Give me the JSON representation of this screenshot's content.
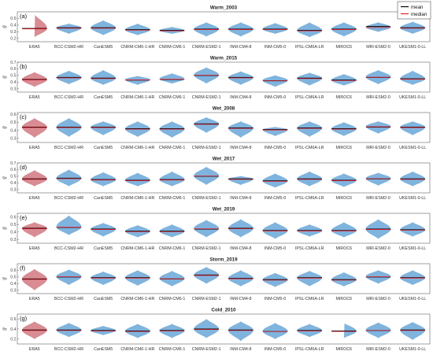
{
  "legend": [
    {
      "label": "mean",
      "color": "#000000"
    },
    {
      "label": "median",
      "color": "#e8212b"
    }
  ],
  "chart_data": [
    {
      "type": "violin",
      "panel_label": "(a)",
      "title": "Warm_2003",
      "ylabel": "g",
      "ylim": [
        0.15,
        0.6
      ],
      "yticks": [
        0.2,
        0.3,
        0.4,
        0.5
      ],
      "categories": [
        "ERA5",
        "BCC-CSM2-HR",
        "CanESM5",
        "CNRM-CM6-1-HR",
        "CNRM-CM6-1",
        "CNRM-ESM2-1",
        "INM-CM4-8",
        "INM-CM5-0",
        "IPSL-CM6A-LR",
        "MIROC6",
        "MRI-ESM2-0",
        "UKESM1-0-LL"
      ],
      "mean": [
        0.35,
        0.36,
        0.36,
        0.33,
        0.32,
        0.34,
        0.34,
        0.34,
        0.32,
        0.34,
        0.38,
        0.36
      ],
      "median": [
        0.35,
        0.36,
        0.36,
        0.33,
        0.32,
        0.34,
        0.34,
        0.34,
        0.32,
        0.34,
        0.37,
        0.36
      ],
      "min": [
        0.22,
        0.27,
        0.25,
        0.25,
        0.27,
        0.23,
        0.23,
        0.27,
        0.22,
        0.23,
        0.3,
        0.27
      ],
      "max": [
        0.56,
        0.42,
        0.47,
        0.42,
        0.37,
        0.44,
        0.44,
        0.43,
        0.44,
        0.44,
        0.44,
        0.45
      ]
    },
    {
      "type": "violin",
      "panel_label": "(b)",
      "title": "Warm_2015",
      "ylabel": "g",
      "ylim": [
        0.25,
        0.7
      ],
      "yticks": [
        0.3,
        0.4,
        0.5,
        0.6,
        0.7
      ],
      "categories": [
        "ERA5",
        "BCC-CSM2-HR",
        "CanESM5",
        "CNRM-CM6-1-HR",
        "CNRM-CM6-1",
        "CNRM-ESM2-1",
        "INM-CM4-8",
        "INM-CM5-0",
        "IPSL-CM6A-LR",
        "MIROC6",
        "MRI-ESM2-0",
        "UKESM1-0-LL"
      ],
      "mean": [
        0.44,
        0.47,
        0.46,
        0.43,
        0.44,
        0.5,
        0.47,
        0.42,
        0.46,
        0.43,
        0.47,
        0.45
      ],
      "median": [
        0.44,
        0.47,
        0.46,
        0.44,
        0.45,
        0.51,
        0.47,
        0.43,
        0.46,
        0.43,
        0.48,
        0.45
      ],
      "min": [
        0.33,
        0.37,
        0.36,
        0.36,
        0.38,
        0.38,
        0.36,
        0.33,
        0.35,
        0.35,
        0.37,
        0.36
      ],
      "max": [
        0.55,
        0.57,
        0.58,
        0.49,
        0.53,
        0.62,
        0.56,
        0.5,
        0.54,
        0.52,
        0.58,
        0.57
      ]
    },
    {
      "type": "violin",
      "panel_label": "(c)",
      "title": "Wet_2008",
      "ylabel": "g",
      "ylim": [
        0.25,
        0.62
      ],
      "yticks": [
        0.3,
        0.4,
        0.5,
        0.6
      ],
      "categories": [
        "ERA5",
        "BCC-CSM2-HR",
        "CanESM5",
        "CNRM-CM6-1-HR",
        "CNRM-CM6-1",
        "CNRM-ESM2-1",
        "INM-CM4-8",
        "INM-CM5-0",
        "IPSL-CM6A-LR",
        "MIROC6",
        "MRI-ESM2-0",
        "UKESM1-0-LL"
      ],
      "mean": [
        0.44,
        0.44,
        0.44,
        0.42,
        0.42,
        0.48,
        0.43,
        0.41,
        0.43,
        0.42,
        0.44,
        0.44
      ],
      "median": [
        0.44,
        0.44,
        0.44,
        0.42,
        0.42,
        0.48,
        0.43,
        0.41,
        0.43,
        0.42,
        0.45,
        0.44
      ],
      "min": [
        0.31,
        0.32,
        0.34,
        0.32,
        0.31,
        0.37,
        0.31,
        0.33,
        0.32,
        0.33,
        0.36,
        0.34
      ],
      "max": [
        0.55,
        0.55,
        0.51,
        0.51,
        0.51,
        0.56,
        0.51,
        0.44,
        0.51,
        0.5,
        0.51,
        0.51
      ]
    },
    {
      "type": "violin",
      "panel_label": "(d)",
      "title": "Wet_2017",
      "ylabel": "g",
      "ylim": [
        0.25,
        0.7
      ],
      "yticks": [
        0.3,
        0.4,
        0.5,
        0.6,
        0.7
      ],
      "categories": [
        "ERA5",
        "BCC-CSM2-HR",
        "CanESM5",
        "CNRM-CM6-1-HR",
        "CNRM-CM6-1",
        "CNRM-ESM2-1",
        "INM-CM4-8",
        "INM-CM5-0",
        "IPSL-CM6A-LR",
        "MIROC6",
        "MRI-ESM2-0",
        "UKESM1-0-LL"
      ],
      "mean": [
        0.46,
        0.47,
        0.45,
        0.44,
        0.45,
        0.5,
        0.46,
        0.43,
        0.46,
        0.44,
        0.46,
        0.46
      ],
      "median": [
        0.46,
        0.47,
        0.45,
        0.44,
        0.45,
        0.51,
        0.46,
        0.43,
        0.46,
        0.44,
        0.47,
        0.46
      ],
      "min": [
        0.35,
        0.35,
        0.35,
        0.35,
        0.35,
        0.37,
        0.37,
        0.33,
        0.35,
        0.34,
        0.36,
        0.35
      ],
      "max": [
        0.59,
        0.6,
        0.56,
        0.55,
        0.57,
        0.64,
        0.5,
        0.54,
        0.57,
        0.54,
        0.55,
        0.57
      ]
    },
    {
      "type": "violin",
      "panel_label": "(e)",
      "title": "Wet_2019",
      "ylabel": "g",
      "ylim": [
        0.25,
        0.65
      ],
      "yticks": [
        0.3,
        0.4,
        0.5,
        0.6
      ],
      "categories": [
        "ERA5",
        "BCC-CSM2-HR",
        "CanESM5",
        "CNRM-CM6-1-HR",
        "CNRM-CM6-1",
        "CNRM-ESM2-1",
        "INM-CM4-8",
        "INM-CM5-0",
        "IPSL-CM6A-LR",
        "MIROC6",
        "MRI-ESM2-0",
        "UKESM1-0-LL"
      ],
      "mean": [
        0.45,
        0.46,
        0.44,
        0.41,
        0.41,
        0.44,
        0.45,
        0.42,
        0.42,
        0.42,
        0.44,
        0.43
      ],
      "median": [
        0.45,
        0.47,
        0.44,
        0.41,
        0.41,
        0.45,
        0.45,
        0.42,
        0.42,
        0.42,
        0.44,
        0.43
      ],
      "min": [
        0.33,
        0.36,
        0.34,
        0.33,
        0.33,
        0.33,
        0.33,
        0.31,
        0.34,
        0.33,
        0.31,
        0.34
      ],
      "max": [
        0.53,
        0.62,
        0.52,
        0.49,
        0.5,
        0.56,
        0.57,
        0.53,
        0.5,
        0.53,
        0.57,
        0.53
      ]
    },
    {
      "type": "violin",
      "panel_label": "(f)",
      "title": "Storm_2019",
      "ylabel": "g",
      "ylim": [
        0.25,
        0.7
      ],
      "yticks": [
        0.3,
        0.4,
        0.5,
        0.6
      ],
      "categories": [
        "ERA5",
        "BCC-CSM2-HR",
        "CanESM5",
        "CNRM-CM6-1-HR",
        "CNRM-CM6-1",
        "CNRM-ESM2-1",
        "INM-CM4-8",
        "INM-CM5-0",
        "IPSL-CM6A-LR",
        "MIROC6",
        "MRI-ESM2-0",
        "UKESM1-0-LL"
      ],
      "mean": [
        0.47,
        0.5,
        0.49,
        0.49,
        0.47,
        0.53,
        0.48,
        0.46,
        0.49,
        0.46,
        0.5,
        0.49
      ],
      "median": [
        0.47,
        0.51,
        0.49,
        0.49,
        0.48,
        0.53,
        0.48,
        0.46,
        0.49,
        0.46,
        0.51,
        0.49
      ],
      "min": [
        0.3,
        0.38,
        0.38,
        0.37,
        0.36,
        0.4,
        0.36,
        0.35,
        0.36,
        0.36,
        0.4,
        0.38
      ],
      "max": [
        0.62,
        0.61,
        0.58,
        0.6,
        0.59,
        0.65,
        0.6,
        0.56,
        0.59,
        0.57,
        0.6,
        0.6
      ]
    },
    {
      "type": "violin",
      "panel_label": "(g)",
      "title": "Cold_2010",
      "ylabel": "g",
      "ylim": [
        0.1,
        0.7
      ],
      "yticks": [
        0.2,
        0.4,
        0.6
      ],
      "categories": [
        "ERA5",
        "BCC-CSM2-HR",
        "CanESM5",
        "CNRM-CM6-1-HR",
        "CNRM-CM6-1",
        "CNRM-ESM2-1",
        "INM-CM4-8",
        "INM-CM5-0",
        "IPSL-CM6A-LR",
        "MIROC6",
        "MRI-ESM2-0",
        "UKESM1-0-LL"
      ],
      "mean": [
        0.38,
        0.38,
        0.37,
        0.36,
        0.37,
        0.4,
        0.38,
        0.35,
        0.37,
        0.36,
        0.37,
        0.38
      ],
      "median": [
        0.38,
        0.38,
        0.37,
        0.36,
        0.37,
        0.4,
        0.38,
        0.36,
        0.37,
        0.36,
        0.38,
        0.38
      ],
      "min": [
        0.2,
        0.24,
        0.28,
        0.22,
        0.22,
        0.22,
        0.16,
        0.2,
        0.24,
        0.22,
        0.22,
        0.18
      ],
      "max": [
        0.55,
        0.52,
        0.46,
        0.5,
        0.5,
        0.6,
        0.55,
        0.52,
        0.5,
        0.52,
        0.53,
        0.54
      ]
    }
  ]
}
